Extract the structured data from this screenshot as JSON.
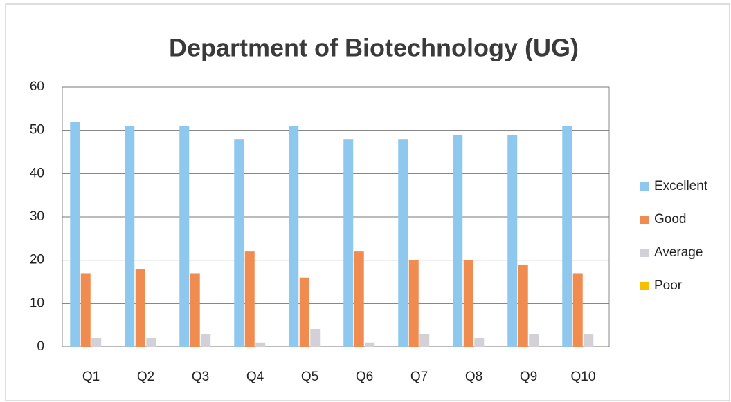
{
  "chart_data": {
    "type": "bar",
    "title": "Department of Biotechnology (UG)",
    "categories": [
      "Q1",
      "Q2",
      "Q3",
      "Q4",
      "Q5",
      "Q6",
      "Q7",
      "Q8",
      "Q9",
      "Q10"
    ],
    "series": [
      {
        "name": "Excellent",
        "color": "#8ec8ee",
        "values": [
          52,
          51,
          51,
          48,
          51,
          48,
          48,
          49,
          49,
          51
        ]
      },
      {
        "name": "Good",
        "color": "#f08c50",
        "values": [
          17,
          18,
          17,
          22,
          16,
          22,
          20,
          20,
          19,
          17
        ]
      },
      {
        "name": "Average",
        "color": "#d3d0d8",
        "values": [
          2,
          2,
          3,
          1,
          4,
          1,
          3,
          2,
          3,
          3
        ]
      },
      {
        "name": "Poor",
        "color": "#f5c000",
        "values": [
          0,
          0,
          0,
          0,
          0,
          0,
          0,
          0,
          0,
          0
        ]
      }
    ],
    "ylim": [
      0,
      60
    ],
    "yticks": [
      0,
      10,
      20,
      30,
      40,
      50,
      60
    ],
    "grid": true,
    "legend": "right"
  }
}
